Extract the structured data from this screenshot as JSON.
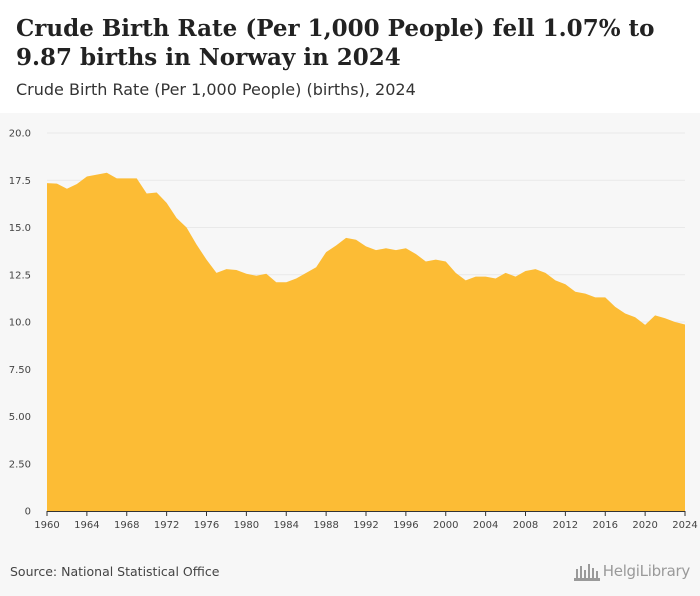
{
  "title": "Crude Birth Rate (Per 1,000 People) fell 1.07% to 9.87 births in Norway in 2024",
  "subtitle": "Crude Birth Rate (Per 1,000 People) (births), 2024",
  "source": "Source: National Statistical Office",
  "brand": {
    "name": "HelgiLibrary",
    "icon": "building-logo-icon"
  },
  "colors": {
    "fill": "#fcbc35",
    "background": "#f7f7f7",
    "grid": "#e9e9e9"
  },
  "chart_data": {
    "type": "area",
    "x": [
      1960,
      1961,
      1962,
      1963,
      1964,
      1965,
      1966,
      1967,
      1968,
      1969,
      1970,
      1971,
      1972,
      1973,
      1974,
      1975,
      1976,
      1977,
      1978,
      1979,
      1980,
      1981,
      1982,
      1983,
      1984,
      1985,
      1986,
      1987,
      1988,
      1989,
      1990,
      1991,
      1992,
      1993,
      1994,
      1995,
      1996,
      1997,
      1998,
      1999,
      2000,
      2001,
      2002,
      2003,
      2004,
      2005,
      2006,
      2007,
      2008,
      2009,
      2010,
      2011,
      2012,
      2013,
      2014,
      2015,
      2016,
      2017,
      2018,
      2019,
      2020,
      2021,
      2022,
      2023,
      2024
    ],
    "values": [
      17.35,
      17.32,
      17.05,
      17.3,
      17.7,
      17.8,
      17.9,
      17.6,
      17.6,
      17.6,
      16.8,
      16.85,
      16.3,
      15.5,
      15.0,
      14.1,
      13.3,
      12.6,
      12.8,
      12.75,
      12.55,
      12.45,
      12.55,
      12.1,
      12.1,
      12.3,
      12.6,
      12.9,
      13.7,
      14.05,
      14.45,
      14.35,
      14.0,
      13.8,
      13.9,
      13.8,
      13.9,
      13.6,
      13.2,
      13.3,
      13.2,
      12.6,
      12.2,
      12.4,
      12.4,
      12.3,
      12.6,
      12.4,
      12.7,
      12.8,
      12.6,
      12.2,
      12.0,
      11.6,
      11.5,
      11.3,
      11.3,
      10.8,
      10.45,
      10.25,
      9.85,
      10.35,
      10.2,
      10.0,
      9.87
    ],
    "xticks": [
      "1960",
      "1964",
      "1968",
      "1972",
      "1976",
      "1980",
      "1984",
      "1988",
      "1992",
      "1996",
      "2000",
      "2004",
      "2008",
      "2012",
      "2016",
      "2020",
      "2024"
    ],
    "yticks": [
      "0",
      "2.50",
      "5.00",
      "7.50",
      "10.0",
      "12.5",
      "15.0",
      "17.5",
      "20.0"
    ],
    "xlim": [
      1960,
      2024
    ],
    "ylim": [
      0,
      20
    ],
    "xlabel": "",
    "ylabel": "",
    "grid": true
  }
}
